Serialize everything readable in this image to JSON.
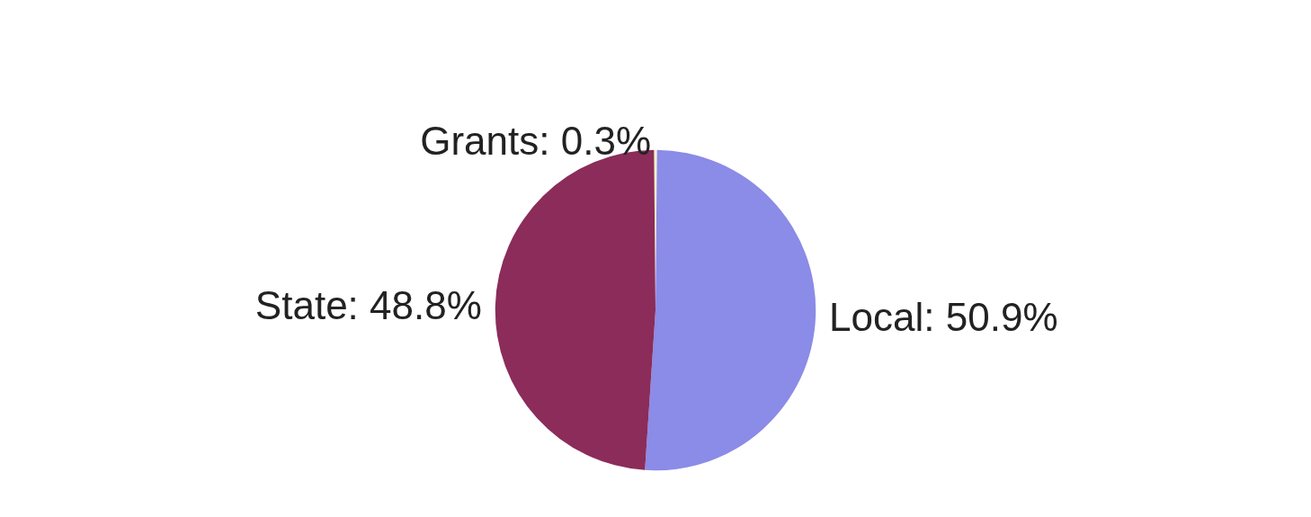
{
  "chart_data": {
    "type": "pie",
    "categories": [
      "Grants",
      "Local",
      "State"
    ],
    "values": [
      0.3,
      50.9,
      48.8
    ],
    "value_labels": [
      "0.3%",
      "50.9%",
      "48.8%"
    ],
    "colors": [
      "#f2f2c8",
      "#8b8be8",
      "#8b2c5a"
    ],
    "legend": false
  }
}
